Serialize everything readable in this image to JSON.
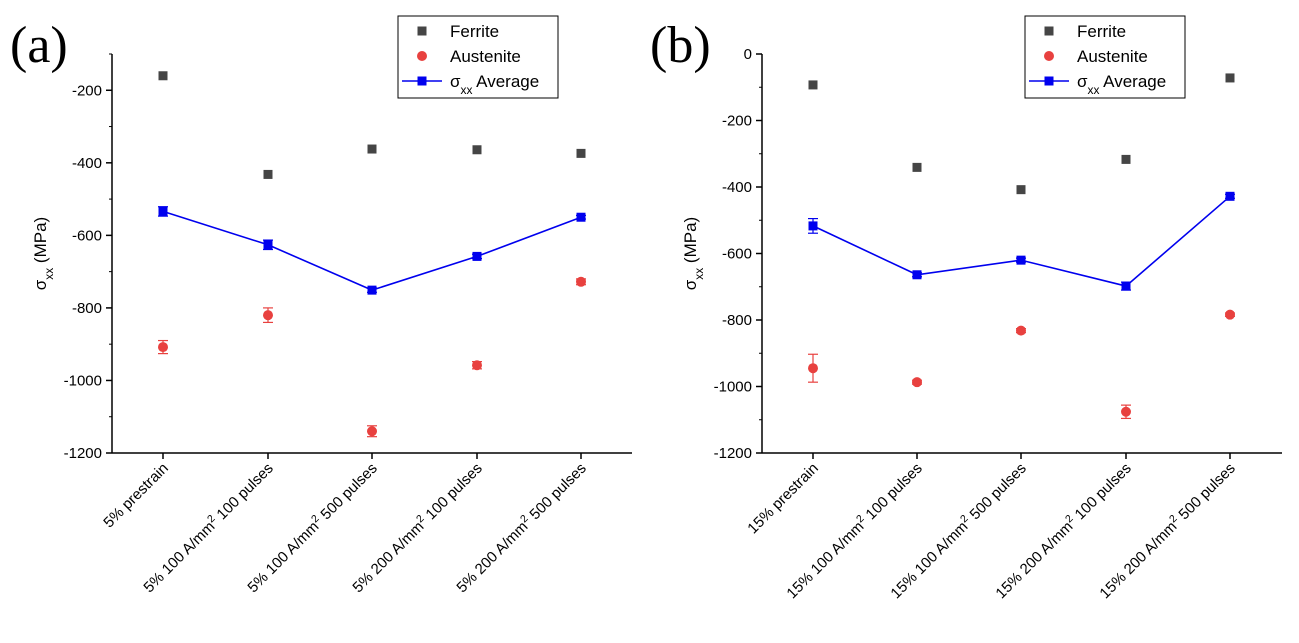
{
  "chart_data": [
    {
      "panel_label": "(a)",
      "type": "scatter",
      "ylabel": "σxx (MPa)",
      "ylim": [
        -1200,
        -100
      ],
      "yticks": [
        -200,
        -400,
        -600,
        -800,
        -1000,
        -1200
      ],
      "categories": [
        {
          "pre": "5% prestrain",
          "sup": "",
          "post": ""
        },
        {
          "pre": "5% 100 A/mm",
          "sup": "2",
          "post": " 100 pulses"
        },
        {
          "pre": "5% 100 A/mm",
          "sup": "2",
          "post": " 500 pulses"
        },
        {
          "pre": "5% 200 A/mm",
          "sup": "2",
          "post": " 100 pulses"
        },
        {
          "pre": "5% 200 A/mm",
          "sup": "2",
          "post": " 500 pulses"
        }
      ],
      "legend": {
        "position": "top-right"
      },
      "series": [
        {
          "name": "Ferrite",
          "marker": "square",
          "color": "#454545",
          "values": [
            -160,
            -432,
            -362,
            -364,
            -374
          ],
          "errors": [
            0,
            0,
            0,
            0,
            0
          ]
        },
        {
          "name": "Austenite",
          "marker": "circle",
          "color": "#e8413f",
          "values": [
            -908,
            -820,
            -1140,
            -958,
            -728
          ],
          "errors": [
            18,
            20,
            15,
            10,
            8
          ]
        },
        {
          "name": "σxx Average",
          "marker": "square-line",
          "color": "#0000ee",
          "values": [
            -534,
            -626,
            -751,
            -658,
            -550
          ],
          "errors": [
            13,
            13,
            6,
            6,
            5
          ]
        }
      ]
    },
    {
      "panel_label": "(b)",
      "type": "scatter",
      "ylabel": "σxx (MPa)",
      "ylim": [
        -1200,
        0
      ],
      "yticks": [
        0,
        -200,
        -400,
        -600,
        -800,
        -1000,
        -1200
      ],
      "categories": [
        {
          "pre": "15% prestrain",
          "sup": "",
          "post": ""
        },
        {
          "pre": "15% 100 A/mm",
          "sup": "2",
          "post": " 100 pulses"
        },
        {
          "pre": "15% 100 A/mm",
          "sup": "2",
          "post": " 500 pulses"
        },
        {
          "pre": "15% 200 A/mm",
          "sup": "2",
          "post": " 100 pulses"
        },
        {
          "pre": "15% 200 A/mm",
          "sup": "2",
          "post": " 500 pulses"
        }
      ],
      "legend": {
        "position": "top-right"
      },
      "series": [
        {
          "name": "Ferrite",
          "marker": "square",
          "color": "#454545",
          "values": [
            -93,
            -341,
            -408,
            -317,
            -72
          ],
          "errors": [
            0,
            0,
            0,
            0,
            0
          ]
        },
        {
          "name": "Austenite",
          "marker": "circle",
          "color": "#e8413f",
          "values": [
            -945,
            -987,
            -832,
            -1076,
            -784
          ],
          "errors": [
            42,
            6,
            6,
            20,
            5
          ]
        },
        {
          "name": "σxx Average",
          "marker": "square-line",
          "color": "#0000ee",
          "values": [
            -517,
            -664,
            -620,
            -698,
            -428
          ],
          "errors": [
            22,
            6,
            6,
            12,
            6
          ]
        }
      ]
    }
  ]
}
